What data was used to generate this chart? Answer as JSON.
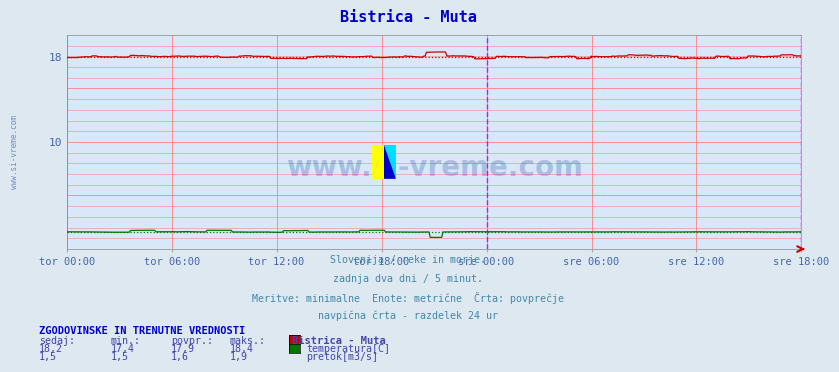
{
  "title": "Bistrica - Muta",
  "title_color": "#0000cc",
  "bg_color": "#dde8f0",
  "plot_bg_color": "#d8e8f8",
  "grid_color_major": "#ff8080",
  "xlabel_color": "#4466aa",
  "watermark": "www.si-vreme.com",
  "watermark_color": "#2244aa",
  "tick_labels": [
    "tor 00:00",
    "tor 06:00",
    "tor 12:00",
    "tor 18:00",
    "sre 00:00",
    "sre 06:00",
    "sre 12:00",
    "sre 18:00"
  ],
  "n_points": 577,
  "temp_min": 17.4,
  "temp_max": 18.4,
  "temp_avg": 17.9,
  "temp_current": 18.2,
  "flow_min": 1.5,
  "flow_max": 1.9,
  "flow_avg": 1.6,
  "flow_current": 1.5,
  "temp_color": "#cc0000",
  "temp_avg_color": "#cc0000",
  "flow_color": "#007700",
  "flow_avg_color": "#007700",
  "ylim": [
    0,
    20.0
  ],
  "vline_color": "#dd00dd",
  "footer_lines": [
    "Slovenija / reke in morje.",
    "zadnja dva dni / 5 minut.",
    "Meritve: minimalne  Enote: metrične  Črta: povprečje",
    "navpična črta - razdelek 24 ur"
  ],
  "footer_color": "#4488aa",
  "table_header": "ZGODOVINSKE IN TRENUTNE VREDNOSTI",
  "table_header_color": "#0000cc",
  "table_col_headers": [
    "sedaj:",
    "min.:",
    "povpr.:",
    "maks.:",
    "Bistrica - Muta"
  ],
  "table_rows": [
    [
      "18,2",
      "17,4",
      "17,9",
      "18,4",
      "temperatura[C]"
    ],
    [
      "1,5",
      "1,5",
      "1,6",
      "1,9",
      "pretok[m3/s]"
    ]
  ],
  "table_color": "#4444aa",
  "sidebar_text": "www.si-vreme.com",
  "sidebar_color": "#4466aa"
}
